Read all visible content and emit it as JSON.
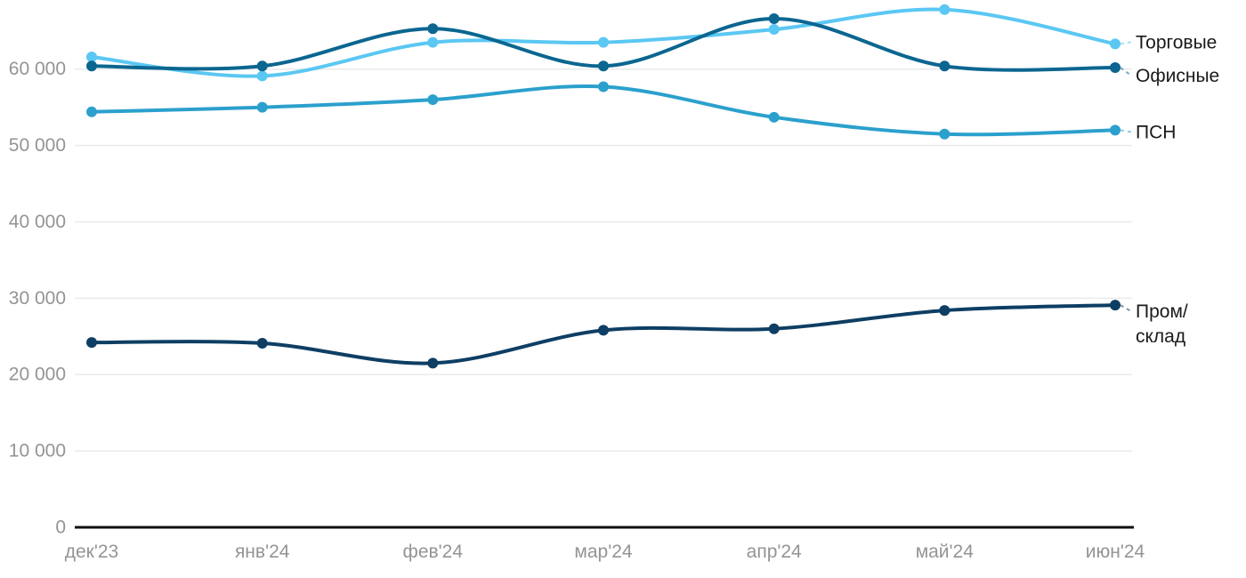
{
  "chart_data": {
    "type": "line",
    "x_categories": [
      "дек'23",
      "янв'24",
      "фев'24",
      "мар'24",
      "апр'24",
      "май'24",
      "июн'24"
    ],
    "y_ticks": [
      0,
      10000,
      20000,
      30000,
      40000,
      50000,
      60000
    ],
    "y_tick_labels": [
      "0",
      "10 000",
      "20 000",
      "30 000",
      "40 000",
      "50 000",
      "60 000"
    ],
    "ylim": [
      0,
      70000
    ],
    "grid": "horizontal-only",
    "legend_position": "right-end-labels",
    "series": [
      {
        "name": "Торговые",
        "slug": "torgovye",
        "label_lines": [
          "Торговые"
        ],
        "color": "#5BC7F3",
        "label_dy": -2,
        "values": [
          61600,
          59100,
          63500,
          63500,
          65200,
          67800,
          63300
        ]
      },
      {
        "name": "Офисные",
        "slug": "ofisnye",
        "label_lines": [
          "Офисные"
        ],
        "color": "#0B6690",
        "label_dy": 9,
        "values": [
          60400,
          60400,
          65300,
          60400,
          66600,
          60400,
          60200
        ]
      },
      {
        "name": "ПСН",
        "slug": "psn",
        "label_lines": [
          "ПСН"
        ],
        "color": "#2BA0CD",
        "label_dy": 2,
        "values": [
          54400,
          55000,
          56000,
          57700,
          53700,
          51500,
          52000
        ]
      },
      {
        "name": "Пром/склад",
        "slug": "prom-sklad",
        "label_lines": [
          "Пром/",
          "склад"
        ],
        "color": "#0E3E63",
        "label_dy": 7,
        "values": [
          24200,
          24100,
          21500,
          25800,
          26000,
          28400,
          29100
        ]
      }
    ],
    "colors": {
      "background": "#ffffff",
      "gridline": "#EAEAEA",
      "axis_line": "#111111",
      "tick_label": "#949494",
      "series_label": "#1A1A1A"
    }
  }
}
